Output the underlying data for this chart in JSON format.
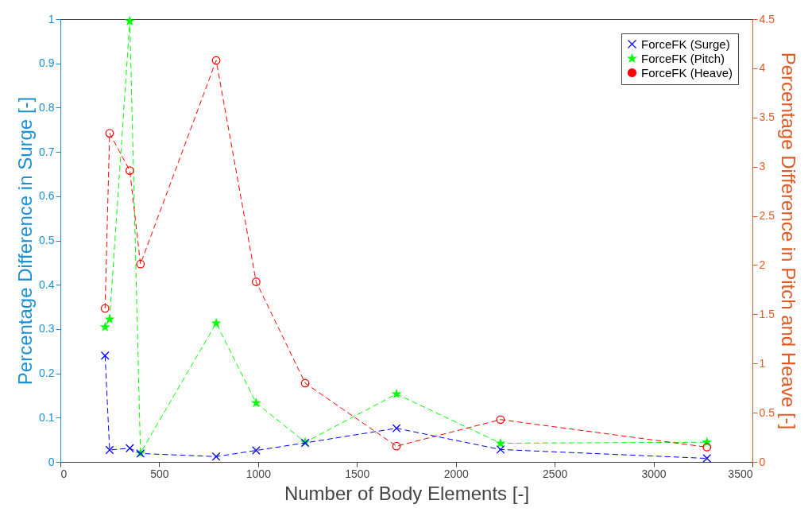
{
  "chart_data": {
    "type": "line",
    "xlabel": "Number of Body Elements  [-]",
    "ylabel": "Percentage Difference in Surge [-]",
    "y2label": "Percentage Difference in Pitch and Heave [-]",
    "x": [
      226,
      249,
      351,
      405,
      788,
      990,
      1238,
      1700,
      2226,
      3270
    ],
    "series": [
      {
        "name": "ForceFK (Surge)",
        "color": "#0000ff",
        "marker": "cross",
        "values": [
          0.24,
          0.027,
          0.031,
          0.019,
          0.012,
          0.026,
          0.043,
          0.076,
          0.028,
          0.008
        ]
      },
      {
        "name": "ForceFK (Pitch)",
        "color": "#00ff00",
        "marker": "star",
        "axis": "y2",
        "values": [
          1.37,
          1.45,
          4.48,
          0.09,
          1.41,
          0.6,
          0.2,
          0.69,
          0.19,
          0.2
        ]
      },
      {
        "name": "ForceFK (Heave)",
        "color": "#ff0000",
        "marker": "circle",
        "axis": "y2",
        "values": [
          1.56,
          3.34,
          2.96,
          2.01,
          4.08,
          1.83,
          0.8,
          0.16,
          0.43,
          0.15
        ]
      }
    ],
    "xlim": [
      0,
      3500
    ],
    "xticks": [
      0,
      500,
      1000,
      1500,
      2000,
      2500,
      3000,
      3500
    ],
    "ylim": [
      0,
      1
    ],
    "yticks": [
      0,
      0.1,
      0.2,
      0.3,
      0.4,
      0.5,
      0.6,
      0.7,
      0.8,
      0.9,
      1
    ],
    "y2lim": [
      0,
      4.5
    ],
    "y2ticks": [
      0,
      0.5,
      1,
      1.5,
      2,
      2.5,
      3,
      3.5,
      4,
      4.5
    ],
    "grid": false,
    "legend": "top right",
    "line_style": "dashed"
  }
}
